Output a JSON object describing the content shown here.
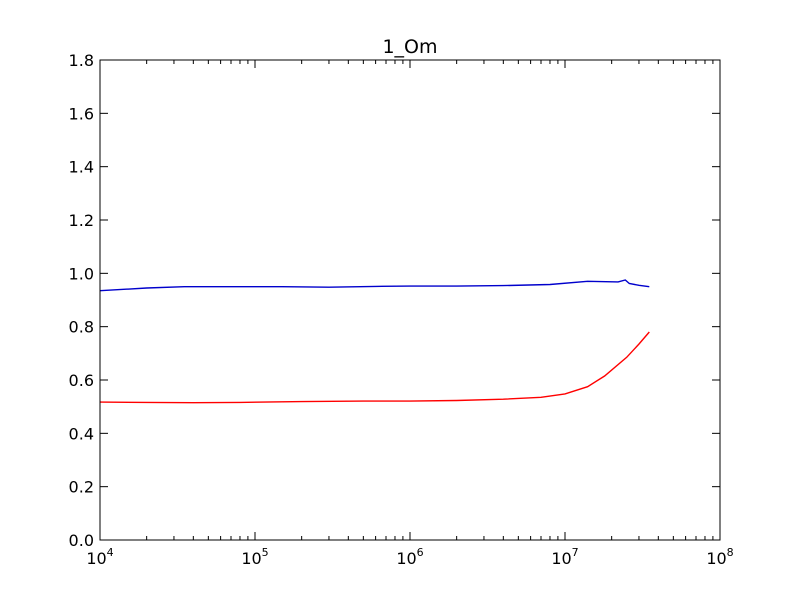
{
  "chart_data": {
    "type": "line",
    "title": "1_Om",
    "xlabel": "",
    "ylabel": "",
    "x_scale": "log",
    "xlim": [
      10000,
      100000000
    ],
    "ylim": [
      0.0,
      1.8
    ],
    "grid": false,
    "x_ticks": [
      {
        "value": 10000,
        "base": "10",
        "exp": "4"
      },
      {
        "value": 100000,
        "base": "10",
        "exp": "5"
      },
      {
        "value": 1000000,
        "base": "10",
        "exp": "6"
      },
      {
        "value": 10000000,
        "base": "10",
        "exp": "7"
      },
      {
        "value": 100000000,
        "base": "10",
        "exp": "8"
      }
    ],
    "y_ticks": [
      {
        "value": 0.0,
        "label": "0.0"
      },
      {
        "value": 0.2,
        "label": "0.2"
      },
      {
        "value": 0.4,
        "label": "0.4"
      },
      {
        "value": 0.6,
        "label": "0.6"
      },
      {
        "value": 0.8,
        "label": "0.8"
      },
      {
        "value": 1.0,
        "label": "1.0"
      },
      {
        "value": 1.2,
        "label": "1.2"
      },
      {
        "value": 1.4,
        "label": "1.4"
      },
      {
        "value": 1.6,
        "label": "1.6"
      },
      {
        "value": 1.8,
        "label": "1.8"
      }
    ],
    "series": [
      {
        "color": "#0000cc",
        "points": [
          [
            10000,
            0.935
          ],
          [
            20000,
            0.945
          ],
          [
            35000,
            0.95
          ],
          [
            70000,
            0.95
          ],
          [
            150000,
            0.95
          ],
          [
            300000,
            0.948
          ],
          [
            600000,
            0.951
          ],
          [
            1000000,
            0.952
          ],
          [
            2000000,
            0.952
          ],
          [
            4000000,
            0.954
          ],
          [
            8000000,
            0.958
          ],
          [
            14000000,
            0.97
          ],
          [
            22000000,
            0.968
          ],
          [
            24500000,
            0.975
          ],
          [
            26000000,
            0.962
          ],
          [
            30000000,
            0.955
          ],
          [
            35000000,
            0.95
          ]
        ]
      },
      {
        "color": "#ff0000",
        "points": [
          [
            10000,
            0.517
          ],
          [
            20000,
            0.516
          ],
          [
            40000,
            0.515
          ],
          [
            80000,
            0.516
          ],
          [
            200000,
            0.519
          ],
          [
            500000,
            0.521
          ],
          [
            1000000,
            0.521
          ],
          [
            2000000,
            0.523
          ],
          [
            4000000,
            0.528
          ],
          [
            7000000,
            0.535
          ],
          [
            10000000,
            0.548
          ],
          [
            14000000,
            0.575
          ],
          [
            18000000,
            0.615
          ],
          [
            25000000,
            0.685
          ],
          [
            30000000,
            0.735
          ],
          [
            35000000,
            0.78
          ]
        ]
      }
    ]
  }
}
